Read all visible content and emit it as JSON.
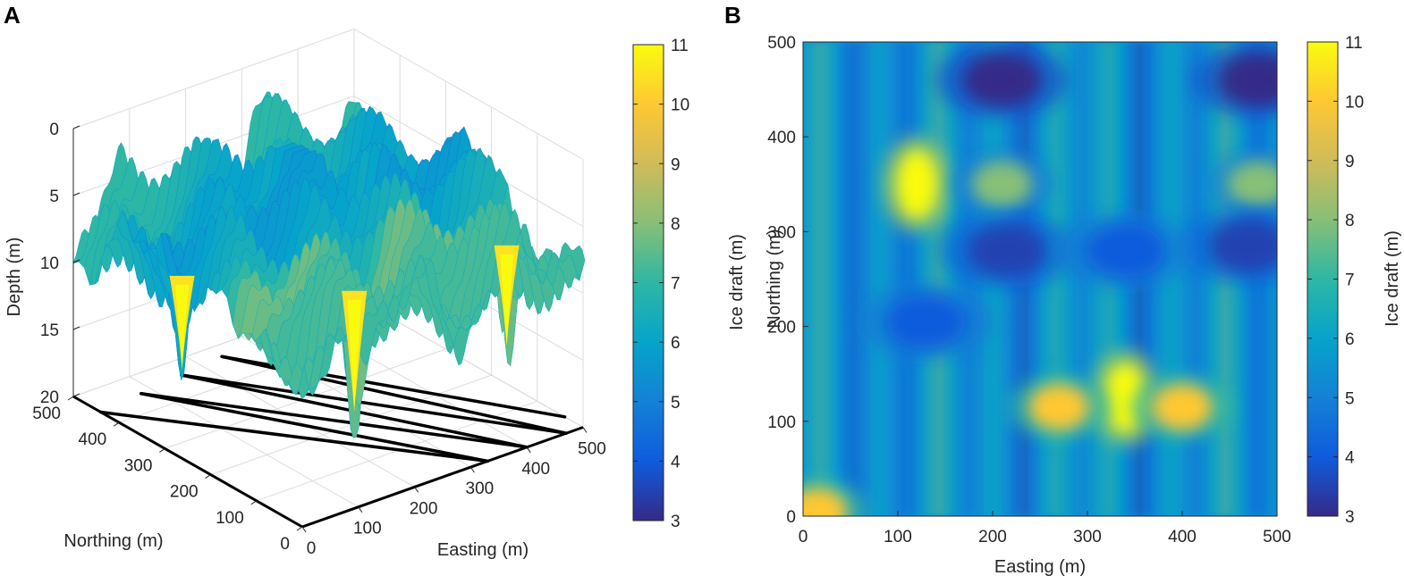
{
  "colors": {
    "parula": [
      "#352a87",
      "#0f5cdd",
      "#1481d6",
      "#06a4ca",
      "#2eb7a4",
      "#87bf77",
      "#d1bb59",
      "#fec832",
      "#f9fb0e"
    ],
    "axis": "#262626",
    "grid": "#dcdcdc",
    "track": "#000000"
  },
  "chart_data": [
    {
      "panel": "A",
      "type": "surface3d",
      "zlabel": "Depth (m)",
      "xlabel": "Easting (m)",
      "ylabel": "Northing (m)",
      "zticks": [
        "0",
        "5",
        "10",
        "15",
        "20"
      ],
      "zlim": [
        0,
        20
      ],
      "xticks": [
        "0",
        "100",
        "200",
        "300",
        "400",
        "500"
      ],
      "yticks": [
        "0",
        "100",
        "200",
        "300",
        "400",
        "500"
      ],
      "xlim": [
        0,
        500
      ],
      "ylim": [
        0,
        500
      ],
      "deep_keels": [
        {
          "easting": 55,
          "northing": 330,
          "depth": 15.5
        },
        {
          "easting": 215,
          "northing": 150,
          "depth": 17.5
        },
        {
          "easting": 470,
          "northing": 130,
          "depth": 16.0
        }
      ],
      "survey_track": {
        "description": "zig-zag AUV survey lines projected on the seafloor plane",
        "legs": [
          {
            "from": [
              0,
              440
            ],
            "to": [
              330,
              0
            ]
          },
          {
            "from": [
              330,
              0
            ],
            "to": [
              80,
              450
            ]
          },
          {
            "from": [
              80,
              450
            ],
            "to": [
              400,
              0
            ]
          },
          {
            "from": [
              400,
              0
            ],
            "to": [
              160,
              460
            ]
          },
          {
            "from": [
              160,
              460
            ],
            "to": [
              470,
              0
            ]
          },
          {
            "from": [
              470,
              0
            ],
            "to": [
              240,
              470
            ]
          },
          {
            "from": [
              240,
              470
            ],
            "to": [
              500,
              40
            ]
          }
        ]
      },
      "colorbar": {
        "label": "Ice draft (m)",
        "ticks": [
          "3",
          "4",
          "5",
          "6",
          "7",
          "8",
          "9",
          "10",
          "11"
        ],
        "range": [
          3,
          11
        ]
      }
    },
    {
      "panel": "B",
      "type": "heatmap",
      "xlabel": "Easting (m)",
      "ylabel": "Northing (m)",
      "xticks": [
        "0",
        "100",
        "200",
        "300",
        "400",
        "500"
      ],
      "yticks": [
        "0",
        "100",
        "200",
        "300",
        "400",
        "500"
      ],
      "xlim": [
        0,
        500
      ],
      "ylim": [
        0,
        500
      ],
      "features": [
        {
          "kind": "high",
          "easting": 120,
          "northing": 350,
          "draft": 11
        },
        {
          "kind": "high",
          "easting": 340,
          "northing": 125,
          "draft": 11
        },
        {
          "kind": "high",
          "easting": 270,
          "northing": 115,
          "draft": 10
        },
        {
          "kind": "high",
          "easting": 400,
          "northing": 115,
          "draft": 10
        },
        {
          "kind": "high",
          "easting": 15,
          "northing": 5,
          "draft": 10
        },
        {
          "kind": "high",
          "easting": 210,
          "northing": 350,
          "draft": 8
        },
        {
          "kind": "high",
          "easting": 480,
          "northing": 350,
          "draft": 8
        },
        {
          "kind": "low",
          "easting": 210,
          "northing": 460,
          "draft": 3
        },
        {
          "kind": "low",
          "easting": 480,
          "northing": 460,
          "draft": 3
        },
        {
          "kind": "low",
          "easting": 215,
          "northing": 280,
          "draft": 3.5
        },
        {
          "kind": "low",
          "easting": 470,
          "northing": 285,
          "draft": 3.5
        },
        {
          "kind": "low",
          "easting": 340,
          "northing": 280,
          "draft": 4
        },
        {
          "kind": "low",
          "easting": 130,
          "northing": 205,
          "draft": 4
        }
      ],
      "background_draft": 5.5,
      "colorbar": {
        "label": "Ice draft (m)",
        "ticks": [
          "3",
          "4",
          "5",
          "6",
          "7",
          "8",
          "9",
          "10",
          "11"
        ],
        "range": [
          3,
          11
        ]
      }
    }
  ]
}
